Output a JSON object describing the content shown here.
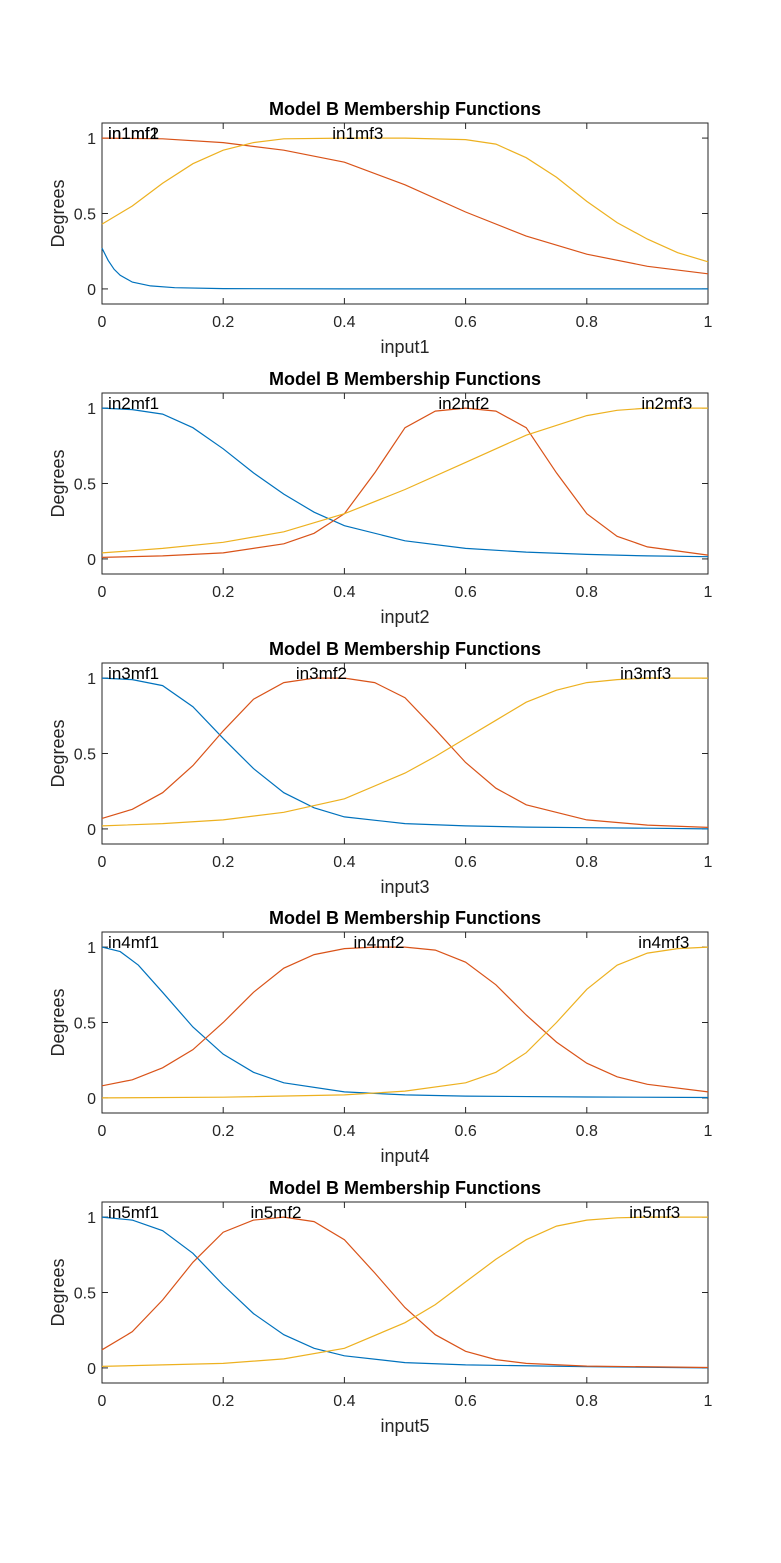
{
  "chart_data": [
    {
      "type": "line",
      "title": "Model B Membership Functions",
      "xlabel": "input1",
      "ylabel": "Degrees",
      "xlim": [
        0,
        1
      ],
      "ylim": [
        -0.1,
        1.1
      ],
      "xticks": [
        "0",
        "0.2",
        "0.4",
        "0.6",
        "0.8",
        "1"
      ],
      "yticks": [
        "0",
        "0.5",
        "1"
      ],
      "grid": false,
      "series": [
        {
          "name": "in1mf1",
          "color": "#0072BD",
          "label_x": 0.01,
          "points": [
            [
              0,
              0.27
            ],
            [
              0.01,
              0.19
            ],
            [
              0.02,
              0.13
            ],
            [
              0.03,
              0.09
            ],
            [
              0.05,
              0.045
            ],
            [
              0.08,
              0.02
            ],
            [
              0.12,
              0.008
            ],
            [
              0.2,
              0.002
            ],
            [
              0.4,
              0.0
            ],
            [
              1,
              0.0
            ]
          ]
        },
        {
          "name": "in1mf2",
          "color": "#D95319",
          "label_x": 0.01,
          "points": [
            [
              0,
              1.0
            ],
            [
              0.1,
              0.995
            ],
            [
              0.2,
              0.97
            ],
            [
              0.3,
              0.92
            ],
            [
              0.4,
              0.84
            ],
            [
              0.5,
              0.69
            ],
            [
              0.6,
              0.51
            ],
            [
              0.7,
              0.35
            ],
            [
              0.8,
              0.23
            ],
            [
              0.9,
              0.15
            ],
            [
              1,
              0.1
            ]
          ]
        },
        {
          "name": "in1mf3",
          "color": "#EDB120",
          "label_x": 0.38,
          "points": [
            [
              0,
              0.43
            ],
            [
              0.05,
              0.55
            ],
            [
              0.1,
              0.7
            ],
            [
              0.15,
              0.83
            ],
            [
              0.2,
              0.92
            ],
            [
              0.25,
              0.97
            ],
            [
              0.3,
              0.995
            ],
            [
              0.4,
              1.0
            ],
            [
              0.5,
              1.0
            ],
            [
              0.6,
              0.99
            ],
            [
              0.65,
              0.96
            ],
            [
              0.7,
              0.87
            ],
            [
              0.75,
              0.74
            ],
            [
              0.8,
              0.58
            ],
            [
              0.85,
              0.44
            ],
            [
              0.9,
              0.33
            ],
            [
              0.95,
              0.24
            ],
            [
              1,
              0.18
            ]
          ]
        }
      ]
    },
    {
      "type": "line",
      "title": "Model B Membership Functions",
      "xlabel": "input2",
      "ylabel": "Degrees",
      "xlim": [
        0,
        1
      ],
      "ylim": [
        -0.1,
        1.1
      ],
      "xticks": [
        "0",
        "0.2",
        "0.4",
        "0.6",
        "0.8",
        "1"
      ],
      "yticks": [
        "0",
        "0.5",
        "1"
      ],
      "grid": false,
      "series": [
        {
          "name": "in2mf1",
          "color": "#0072BD",
          "label_x": 0.01,
          "points": [
            [
              0,
              1.0
            ],
            [
              0.05,
              0.99
            ],
            [
              0.1,
              0.96
            ],
            [
              0.15,
              0.87
            ],
            [
              0.2,
              0.73
            ],
            [
              0.25,
              0.57
            ],
            [
              0.3,
              0.43
            ],
            [
              0.35,
              0.31
            ],
            [
              0.4,
              0.22
            ],
            [
              0.5,
              0.12
            ],
            [
              0.6,
              0.07
            ],
            [
              0.7,
              0.045
            ],
            [
              0.8,
              0.03
            ],
            [
              0.9,
              0.02
            ],
            [
              1,
              0.015
            ]
          ]
        },
        {
          "name": "in2mf2",
          "color": "#D95319",
          "label_x": 0.555,
          "points": [
            [
              0,
              0.01
            ],
            [
              0.1,
              0.02
            ],
            [
              0.2,
              0.04
            ],
            [
              0.3,
              0.1
            ],
            [
              0.35,
              0.17
            ],
            [
              0.4,
              0.3
            ],
            [
              0.45,
              0.57
            ],
            [
              0.5,
              0.87
            ],
            [
              0.55,
              0.98
            ],
            [
              0.6,
              1.0
            ],
            [
              0.65,
              0.98
            ],
            [
              0.7,
              0.87
            ],
            [
              0.75,
              0.57
            ],
            [
              0.8,
              0.3
            ],
            [
              0.85,
              0.15
            ],
            [
              0.9,
              0.08
            ],
            [
              1,
              0.025
            ]
          ]
        },
        {
          "name": "in2mf3",
          "color": "#EDB120",
          "label_x": 0.89,
          "points": [
            [
              0,
              0.04
            ],
            [
              0.1,
              0.07
            ],
            [
              0.2,
              0.11
            ],
            [
              0.3,
              0.18
            ],
            [
              0.4,
              0.3
            ],
            [
              0.5,
              0.46
            ],
            [
              0.6,
              0.64
            ],
            [
              0.7,
              0.82
            ],
            [
              0.8,
              0.95
            ],
            [
              0.85,
              0.985
            ],
            [
              0.9,
              1.0
            ],
            [
              1,
              1.0
            ]
          ]
        }
      ]
    },
    {
      "type": "line",
      "title": "Model B Membership Functions",
      "xlabel": "input3",
      "ylabel": "Degrees",
      "xlim": [
        0,
        1
      ],
      "ylim": [
        -0.1,
        1.1
      ],
      "xticks": [
        "0",
        "0.2",
        "0.4",
        "0.6",
        "0.8",
        "1"
      ],
      "yticks": [
        "0",
        "0.5",
        "1"
      ],
      "grid": false,
      "series": [
        {
          "name": "in3mf1",
          "color": "#0072BD",
          "label_x": 0.01,
          "points": [
            [
              0,
              1.0
            ],
            [
              0.05,
              0.99
            ],
            [
              0.1,
              0.95
            ],
            [
              0.15,
              0.81
            ],
            [
              0.2,
              0.6
            ],
            [
              0.25,
              0.4
            ],
            [
              0.3,
              0.24
            ],
            [
              0.35,
              0.14
            ],
            [
              0.4,
              0.08
            ],
            [
              0.5,
              0.035
            ],
            [
              0.6,
              0.02
            ],
            [
              0.7,
              0.012
            ],
            [
              0.8,
              0.008
            ],
            [
              0.9,
              0.005
            ],
            [
              1,
              0.0
            ]
          ]
        },
        {
          "name": "in3mf2",
          "color": "#D95319",
          "label_x": 0.32,
          "points": [
            [
              0,
              0.07
            ],
            [
              0.05,
              0.13
            ],
            [
              0.1,
              0.24
            ],
            [
              0.15,
              0.42
            ],
            [
              0.2,
              0.65
            ],
            [
              0.25,
              0.86
            ],
            [
              0.3,
              0.97
            ],
            [
              0.35,
              1.0
            ],
            [
              0.4,
              1.0
            ],
            [
              0.45,
              0.97
            ],
            [
              0.5,
              0.87
            ],
            [
              0.55,
              0.66
            ],
            [
              0.6,
              0.44
            ],
            [
              0.65,
              0.27
            ],
            [
              0.7,
              0.16
            ],
            [
              0.8,
              0.06
            ],
            [
              0.9,
              0.025
            ],
            [
              1,
              0.01
            ]
          ]
        },
        {
          "name": "in3mf3",
          "color": "#EDB120",
          "label_x": 0.855,
          "points": [
            [
              0,
              0.02
            ],
            [
              0.1,
              0.035
            ],
            [
              0.2,
              0.06
            ],
            [
              0.3,
              0.11
            ],
            [
              0.4,
              0.2
            ],
            [
              0.5,
              0.37
            ],
            [
              0.55,
              0.48
            ],
            [
              0.6,
              0.6
            ],
            [
              0.65,
              0.72
            ],
            [
              0.7,
              0.84
            ],
            [
              0.75,
              0.92
            ],
            [
              0.8,
              0.97
            ],
            [
              0.85,
              0.99
            ],
            [
              0.9,
              1.0
            ],
            [
              1,
              1.0
            ]
          ]
        }
      ]
    },
    {
      "type": "line",
      "title": "Model B Membership Functions",
      "xlabel": "input4",
      "ylabel": "Degrees",
      "xlim": [
        0,
        1
      ],
      "ylim": [
        -0.1,
        1.1
      ],
      "xticks": [
        "0",
        "0.2",
        "0.4",
        "0.6",
        "0.8",
        "1"
      ],
      "yticks": [
        "0",
        "0.5",
        "1"
      ],
      "grid": false,
      "series": [
        {
          "name": "in4mf1",
          "color": "#0072BD",
          "label_x": 0.01,
          "points": [
            [
              0,
              1.0
            ],
            [
              0.03,
              0.97
            ],
            [
              0.06,
              0.88
            ],
            [
              0.1,
              0.7
            ],
            [
              0.15,
              0.47
            ],
            [
              0.2,
              0.29
            ],
            [
              0.25,
              0.17
            ],
            [
              0.3,
              0.1
            ],
            [
              0.4,
              0.04
            ],
            [
              0.5,
              0.02
            ],
            [
              0.6,
              0.012
            ],
            [
              0.8,
              0.006
            ],
            [
              1,
              0.003
            ]
          ]
        },
        {
          "name": "in4mf2",
          "color": "#D95319",
          "label_x": 0.415,
          "points": [
            [
              0,
              0.08
            ],
            [
              0.05,
              0.12
            ],
            [
              0.1,
              0.2
            ],
            [
              0.15,
              0.32
            ],
            [
              0.2,
              0.5
            ],
            [
              0.25,
              0.7
            ],
            [
              0.3,
              0.86
            ],
            [
              0.35,
              0.95
            ],
            [
              0.4,
              0.99
            ],
            [
              0.45,
              1.0
            ],
            [
              0.5,
              1.0
            ],
            [
              0.55,
              0.98
            ],
            [
              0.6,
              0.9
            ],
            [
              0.65,
              0.75
            ],
            [
              0.7,
              0.55
            ],
            [
              0.75,
              0.37
            ],
            [
              0.8,
              0.23
            ],
            [
              0.85,
              0.14
            ],
            [
              0.9,
              0.09
            ],
            [
              1,
              0.04
            ]
          ]
        },
        {
          "name": "in4mf3",
          "color": "#EDB120",
          "label_x": 0.885,
          "points": [
            [
              0,
              0.0
            ],
            [
              0.2,
              0.005
            ],
            [
              0.4,
              0.02
            ],
            [
              0.5,
              0.045
            ],
            [
              0.6,
              0.1
            ],
            [
              0.65,
              0.17
            ],
            [
              0.7,
              0.3
            ],
            [
              0.75,
              0.5
            ],
            [
              0.8,
              0.72
            ],
            [
              0.85,
              0.88
            ],
            [
              0.9,
              0.96
            ],
            [
              0.95,
              0.99
            ],
            [
              1,
              1.0
            ]
          ]
        }
      ]
    },
    {
      "type": "line",
      "title": "Model B Membership Functions",
      "xlabel": "input5",
      "ylabel": "Degrees",
      "xlim": [
        0,
        1
      ],
      "ylim": [
        -0.1,
        1.1
      ],
      "xticks": [
        "0",
        "0.2",
        "0.4",
        "0.6",
        "0.8",
        "1"
      ],
      "yticks": [
        "0",
        "0.5",
        "1"
      ],
      "grid": false,
      "series": [
        {
          "name": "in5mf1",
          "color": "#0072BD",
          "label_x": 0.01,
          "points": [
            [
              0,
              1.0
            ],
            [
              0.05,
              0.98
            ],
            [
              0.1,
              0.91
            ],
            [
              0.15,
              0.76
            ],
            [
              0.2,
              0.55
            ],
            [
              0.25,
              0.36
            ],
            [
              0.3,
              0.22
            ],
            [
              0.35,
              0.13
            ],
            [
              0.4,
              0.08
            ],
            [
              0.5,
              0.035
            ],
            [
              0.6,
              0.02
            ],
            [
              0.8,
              0.008
            ],
            [
              1,
              0.0
            ]
          ]
        },
        {
          "name": "in5mf2",
          "color": "#D95319",
          "label_x": 0.245,
          "points": [
            [
              0,
              0.12
            ],
            [
              0.05,
              0.24
            ],
            [
              0.1,
              0.45
            ],
            [
              0.15,
              0.7
            ],
            [
              0.2,
              0.9
            ],
            [
              0.25,
              0.98
            ],
            [
              0.3,
              1.0
            ],
            [
              0.35,
              0.97
            ],
            [
              0.4,
              0.85
            ],
            [
              0.45,
              0.63
            ],
            [
              0.5,
              0.4
            ],
            [
              0.55,
              0.22
            ],
            [
              0.6,
              0.11
            ],
            [
              0.65,
              0.055
            ],
            [
              0.7,
              0.03
            ],
            [
              0.8,
              0.012
            ],
            [
              1,
              0.003
            ]
          ]
        },
        {
          "name": "in5mf3",
          "color": "#EDB120",
          "label_x": 0.87,
          "points": [
            [
              0,
              0.01
            ],
            [
              0.1,
              0.02
            ],
            [
              0.2,
              0.03
            ],
            [
              0.3,
              0.06
            ],
            [
              0.4,
              0.13
            ],
            [
              0.5,
              0.3
            ],
            [
              0.55,
              0.42
            ],
            [
              0.6,
              0.57
            ],
            [
              0.65,
              0.72
            ],
            [
              0.7,
              0.85
            ],
            [
              0.75,
              0.94
            ],
            [
              0.8,
              0.98
            ],
            [
              0.85,
              0.995
            ],
            [
              0.9,
              1.0
            ],
            [
              1,
              1.0
            ]
          ]
        }
      ]
    }
  ]
}
